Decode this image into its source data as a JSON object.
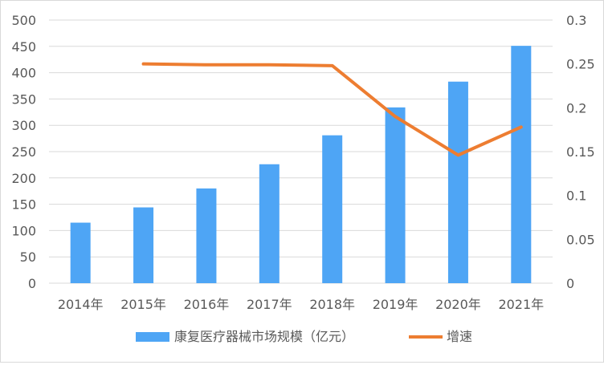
{
  "chart_data": {
    "type": "bar+line",
    "categories": [
      "2014年",
      "2015年",
      "2016年",
      "2017年",
      "2018年",
      "2019年",
      "2020年",
      "2021年"
    ],
    "series": [
      {
        "name": "康复医疗器械市场规模（亿元）",
        "type": "bar",
        "axis": "left",
        "color": "#4ea5f5",
        "values": [
          115,
          144,
          180,
          226,
          281,
          334,
          383,
          451
        ]
      },
      {
        "name": "增速",
        "type": "line",
        "axis": "right",
        "color": "#ed7d31",
        "values": [
          null,
          0.25,
          0.249,
          0.249,
          0.248,
          0.19,
          0.146,
          0.178
        ]
      }
    ],
    "y_left": {
      "ylim": [
        0,
        500
      ],
      "ticks": [
        "0",
        "50",
        "100",
        "150",
        "200",
        "250",
        "300",
        "350",
        "400",
        "450",
        "500"
      ]
    },
    "y_right": {
      "ylim": [
        0,
        0.3
      ],
      "ticks": [
        "0",
        "0.05",
        "0.1",
        "0.15",
        "0.2",
        "0.25",
        "0.3"
      ]
    },
    "grid": true,
    "legend_position": "bottom"
  }
}
